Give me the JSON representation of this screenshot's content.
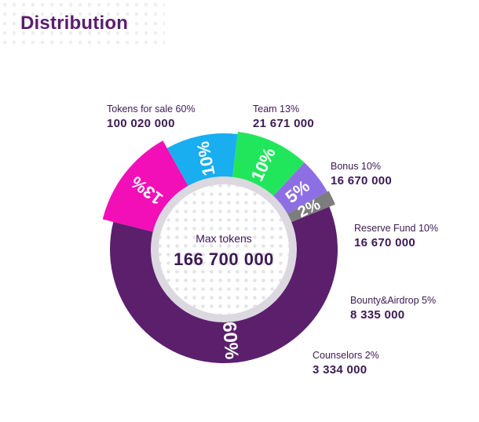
{
  "page": {
    "title": "Distribution"
  },
  "chart_data": {
    "type": "pie",
    "style": "donut",
    "center_caption": "Max tokens",
    "center_total": "166 700 000",
    "slices": [
      {
        "label": "Tokens for sale 60%",
        "percent_label": "60%",
        "percent": 60,
        "amount": "100 020 000",
        "color": "#5b1f6c"
      },
      {
        "label": "Team 13%",
        "percent_label": "13%",
        "percent": 13,
        "amount": "21 671 000",
        "color": "#f20fb8"
      },
      {
        "label": "Bonus 10%",
        "percent_label": "10%",
        "percent": 10,
        "amount": "16 670 000",
        "color": "#18aef0"
      },
      {
        "label": "Reserve Fund 10%",
        "percent_label": "10%",
        "percent": 10,
        "amount": "16 670 000",
        "color": "#21e65c"
      },
      {
        "label": "Bounty&Airdrop 5%",
        "percent_label": "5%",
        "percent": 5,
        "amount": "8 335 000",
        "color": "#8e6fe3"
      },
      {
        "label": "Counselors 2%",
        "percent_label": "2%",
        "percent": 2,
        "amount": "3 334 000",
        "color": "#7d7d7d"
      }
    ]
  }
}
